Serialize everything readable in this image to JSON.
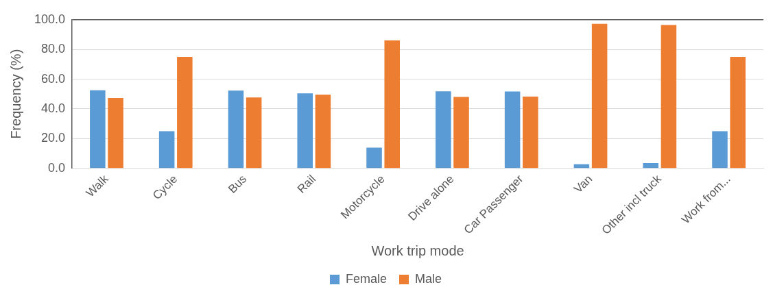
{
  "chart_data": {
    "type": "bar",
    "xlabel": "Work trip mode",
    "ylabel": "Frequency (%)",
    "categories": [
      "Walk",
      "Cycle",
      "Bus",
      "Rail",
      "Motorcycle",
      "Drive alone",
      "Car Passenger",
      "Van",
      "Other incl truck",
      "Work from..."
    ],
    "series": [
      {
        "name": "Female",
        "color": "#5b9bd5",
        "values": [
          52.6,
          25.0,
          52.3,
          50.5,
          13.9,
          51.9,
          51.7,
          2.8,
          3.6,
          25.0
        ]
      },
      {
        "name": "Male",
        "color": "#ed7d31",
        "values": [
          47.4,
          75.0,
          47.7,
          49.5,
          86.1,
          48.1,
          48.3,
          97.2,
          96.4,
          75.0
        ]
      }
    ],
    "ylim": [
      0,
      100
    ],
    "yticks": [
      {
        "value": 0,
        "label": "0.0"
      },
      {
        "value": 20,
        "label": "20.0"
      },
      {
        "value": 40,
        "label": "40.0"
      },
      {
        "value": 60,
        "label": "60.0"
      },
      {
        "value": 80,
        "label": "80.0"
      },
      {
        "value": 100,
        "label": "100.0"
      }
    ],
    "grid": "y",
    "legend": "bottom"
  }
}
